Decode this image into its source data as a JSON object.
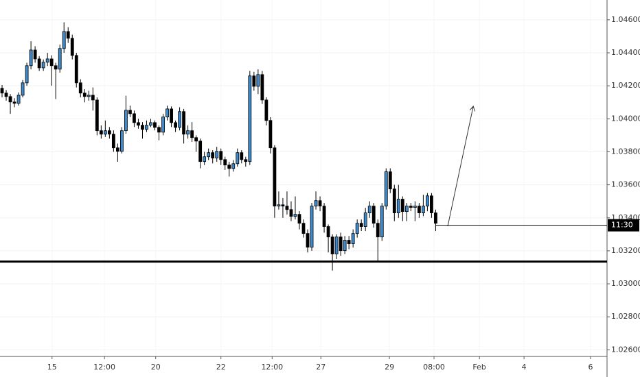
{
  "chart_data": {
    "type": "candlestick",
    "up_color": "#3d8bcd",
    "down_color": "#000000",
    "grid": true,
    "xlim": [
      -0.5,
      146.5
    ],
    "ylim": [
      1.0256,
      1.0472
    ],
    "xticks": [
      {
        "value": 12.1,
        "label": "15"
      },
      {
        "value": 24.8,
        "label": "12:00"
      },
      {
        "value": 37.2,
        "label": "20"
      },
      {
        "value": 53.0,
        "label": "22"
      },
      {
        "value": 65.4,
        "label": "12:00"
      },
      {
        "value": 77.2,
        "label": "27"
      },
      {
        "value": 93.8,
        "label": "29"
      },
      {
        "value": 104.6,
        "label": "08:00"
      },
      {
        "value": 115.6,
        "label": "Feb"
      },
      {
        "value": 126.4,
        "label": "4"
      },
      {
        "value": 142.5,
        "label": "6"
      }
    ],
    "yticks": [
      {
        "value": 1.026,
        "label": "1.02600"
      },
      {
        "value": 1.028,
        "label": "1.02800"
      },
      {
        "value": 1.03,
        "label": "1.03000"
      },
      {
        "value": 1.032,
        "label": "1.03200"
      },
      {
        "value": 1.034,
        "label": "1.03400"
      },
      {
        "value": 1.036,
        "label": "1.03600"
      },
      {
        "value": 1.038,
        "label": "1.03800"
      },
      {
        "value": 1.04,
        "label": "1.04000"
      },
      {
        "value": 1.042,
        "label": "1.04200"
      },
      {
        "value": 1.044,
        "label": "1.04400"
      },
      {
        "value": 1.046,
        "label": "1.04600"
      }
    ],
    "support_level": 1.03135,
    "current_price": {
      "value": 1.03355,
      "label": "11:30"
    },
    "open": [
      1.04185,
      1.04156,
      1.04135,
      1.04102,
      1.04094,
      1.04143,
      1.04218,
      1.04322,
      1.04417,
      1.04363,
      1.04309,
      1.04343,
      1.04363,
      1.04322,
      1.04301,
      1.04426,
      1.04529,
      1.04488,
      1.04384,
      1.04218,
      1.04156,
      1.04135,
      1.04143,
      1.04114,
      1.03928,
      1.03907,
      1.03928,
      1.03907,
      1.03824,
      1.03803,
      1.03928,
      1.04052,
      1.04031,
      1.03977,
      1.03961,
      1.03936,
      1.03961,
      1.03977,
      1.03948,
      1.03919,
      1.04011,
      1.0406,
      1.03977,
      1.03948,
      1.04044,
      1.03907,
      1.03928,
      1.03886,
      1.03865,
      1.03741,
      1.0377,
      1.03795,
      1.03762,
      1.03803,
      1.03753,
      1.0372,
      1.03699,
      1.03728,
      1.03795,
      1.03753,
      1.03741,
      1.0426,
      1.04197,
      1.04268,
      1.04114,
      1.0399,
      1.03824,
      1.03471,
      1.03479,
      1.03471,
      1.0345,
      1.03409,
      1.03421,
      1.03367,
      1.03305,
      1.03222,
      1.03471,
      1.03504,
      1.03471,
      1.03347,
      1.03284,
      1.03181,
      1.03284,
      1.03201,
      1.03264,
      1.03243,
      1.03305,
      1.03367,
      1.03347,
      1.0343,
      1.03471,
      1.03367,
      1.03284,
      1.03471,
      1.03679,
      1.03575,
      1.0343,
      1.03513,
      1.03438,
      1.03471,
      1.03463,
      1.03471,
      1.0343,
      1.03471,
      1.03533,
      1.0343
    ],
    "high": [
      1.04205,
      1.04175,
      1.0415,
      1.04125,
      1.0416,
      1.04235,
      1.0434,
      1.0447,
      1.0444,
      1.0438,
      1.0436,
      1.044,
      1.04385,
      1.0434,
      1.0445,
      1.04585,
      1.04555,
      1.0451,
      1.044,
      1.0424,
      1.0418,
      1.0417,
      1.0419,
      1.0413,
      1.0396,
      1.0399,
      1.0395,
      1.0393,
      1.0385,
      1.0395,
      1.0414,
      1.0408,
      1.0405,
      1.04,
      1.0398,
      1.0399,
      1.04,
      1.0399,
      1.0396,
      1.0403,
      1.0408,
      1.04075,
      1.0399,
      1.0407,
      1.0406,
      1.0396,
      1.0398,
      1.039,
      1.0388,
      1.038,
      1.0382,
      1.0381,
      1.0383,
      1.0382,
      1.0377,
      1.0374,
      1.0375,
      1.0382,
      1.0381,
      1.0377,
      1.0429,
      1.04285,
      1.043,
      1.0429,
      1.0413,
      1.0401,
      1.0384,
      1.0356,
      1.0352,
      1.0356,
      1.035,
      1.0353,
      1.0344,
      1.0339,
      1.0333,
      1.0349,
      1.0356,
      1.0353,
      1.0349,
      1.0336,
      1.033,
      1.033,
      1.0331,
      1.0329,
      1.0329,
      1.0333,
      1.0339,
      1.0339,
      1.0346,
      1.035,
      1.0349,
      1.0339,
      1.0349,
      1.037,
      1.037,
      1.036,
      1.036,
      1.0353,
      1.0349,
      1.0349,
      1.035,
      1.0349,
      1.0354,
      1.0355,
      1.0355,
      1.0345
    ],
    "low": [
      1.0413,
      1.0411,
      1.0403,
      1.0407,
      1.0408,
      1.0413,
      1.042,
      1.043,
      1.0434,
      1.0429,
      1.0429,
      1.0432,
      1.042,
      1.0412,
      1.0428,
      1.044,
      1.0446,
      1.0436,
      1.0419,
      1.0413,
      1.041,
      1.0411,
      1.0405,
      1.039,
      1.0388,
      1.0389,
      1.0388,
      1.038,
      1.0374,
      1.0379,
      1.0391,
      1.0401,
      1.0395,
      1.0394,
      1.0388,
      1.0392,
      1.0395,
      1.0393,
      1.0387,
      1.039,
      1.0399,
      1.0395,
      1.0392,
      1.0393,
      1.0385,
      1.0388,
      1.0386,
      1.038,
      1.037,
      1.0372,
      1.0375,
      1.0373,
      1.0374,
      1.0372,
      1.0369,
      1.0365,
      1.0368,
      1.0371,
      1.0373,
      1.0371,
      1.0372,
      1.0417,
      1.0415,
      1.0409,
      1.0396,
      1.0379,
      1.034,
      1.0345,
      1.034,
      1.0342,
      1.0338,
      1.0339,
      1.0333,
      1.0328,
      1.0319,
      1.032,
      1.0345,
      1.0344,
      1.0331,
      1.0319,
      1.0308,
      1.0315,
      1.0317,
      1.0318,
      1.0321,
      1.0322,
      1.0328,
      1.0332,
      1.0332,
      1.034,
      1.0334,
      1.0314,
      1.0326,
      1.0345,
      1.0355,
      1.0338,
      1.034,
      1.0338,
      1.0338,
      1.0344,
      1.0338,
      1.034,
      1.0341,
      1.0344,
      1.034,
      1.0332
    ],
    "close": [
      1.04156,
      1.04135,
      1.04102,
      1.04094,
      1.04143,
      1.04218,
      1.04322,
      1.04417,
      1.04363,
      1.04309,
      1.04343,
      1.04363,
      1.04322,
      1.04301,
      1.04426,
      1.04529,
      1.04488,
      1.04384,
      1.04218,
      1.04156,
      1.04135,
      1.04143,
      1.04114,
      1.03928,
      1.03907,
      1.03928,
      1.03907,
      1.03824,
      1.03803,
      1.03928,
      1.04052,
      1.04031,
      1.03977,
      1.03961,
      1.03936,
      1.03961,
      1.03977,
      1.03948,
      1.03919,
      1.04011,
      1.0406,
      1.03977,
      1.03948,
      1.04044,
      1.03907,
      1.03928,
      1.03886,
      1.03865,
      1.03741,
      1.0377,
      1.03795,
      1.03762,
      1.03803,
      1.03753,
      1.0372,
      1.03699,
      1.03728,
      1.03795,
      1.03753,
      1.03741,
      1.0426,
      1.04197,
      1.04268,
      1.04114,
      1.0399,
      1.03824,
      1.03471,
      1.03479,
      1.03471,
      1.0345,
      1.03409,
      1.03421,
      1.03367,
      1.03305,
      1.03222,
      1.03471,
      1.03504,
      1.03471,
      1.03347,
      1.03284,
      1.03181,
      1.03284,
      1.03201,
      1.03264,
      1.03243,
      1.03305,
      1.03367,
      1.03347,
      1.0343,
      1.03471,
      1.03367,
      1.03284,
      1.03471,
      1.03679,
      1.03575,
      1.0343,
      1.03513,
      1.03438,
      1.03471,
      1.03463,
      1.03471,
      1.0343,
      1.03471,
      1.03533,
      1.0343,
      1.03367
    ]
  }
}
